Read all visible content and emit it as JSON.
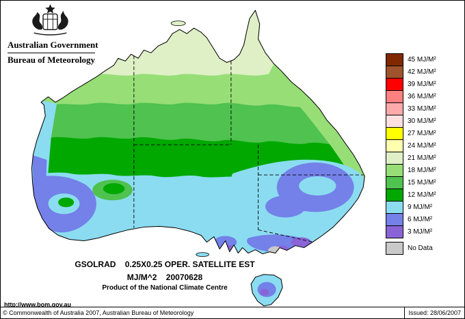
{
  "header": {
    "government": "Australian Government",
    "bureau": "Bureau of Meteorology"
  },
  "map": {
    "caption_line1": "GSOLRAD    0.25X0.25 OPER. SATELLITE EST",
    "caption_line2": "MJ/M^2    20070628",
    "caption_line3": "Product of the National Climate Centre",
    "url": "http://www.bom.gov.au"
  },
  "legend": {
    "items": [
      {
        "value": "45",
        "label": "45 MJ/M²",
        "color": "#802800"
      },
      {
        "value": "42",
        "label": "42 MJ/M²",
        "color": "#A0522D"
      },
      {
        "value": "39",
        "label": "39 MJ/M²",
        "color": "#FF0000"
      },
      {
        "value": "36",
        "label": "36 MJ/M²",
        "color": "#FF8080"
      },
      {
        "value": "33",
        "label": "33 MJ/M²",
        "color": "#FFAAAA"
      },
      {
        "value": "30",
        "label": "30 MJ/M²",
        "color": "#FFE0E0"
      },
      {
        "value": "27",
        "label": "27 MJ/M²",
        "color": "#FFFF00"
      },
      {
        "value": "24",
        "label": "24 MJ/M²",
        "color": "#FFFFB0"
      },
      {
        "value": "21",
        "label": "21 MJ/M²",
        "color": "#DFF0C6"
      },
      {
        "value": "18",
        "label": "18 MJ/M²",
        "color": "#97DE77"
      },
      {
        "value": "15",
        "label": "15 MJ/M²",
        "color": "#4FC24F"
      },
      {
        "value": "12",
        "label": "12 MJ/M²",
        "color": "#00A800"
      },
      {
        "value": "9",
        "label": "9 MJ/M²",
        "color": "#8BDCF0"
      },
      {
        "value": "6",
        "label": "6 MJ/M²",
        "color": "#7381E8"
      },
      {
        "value": "3",
        "label": "3 MJ/M²",
        "color": "#8A64D6"
      },
      {
        "value": "nodata",
        "label": "No Data",
        "color": "#C9C9C9"
      }
    ]
  },
  "footer": {
    "copyright": "© Commonwealth of Australia 2007, Australian Bureau of Meteorology",
    "issued": "Issued: 28/06/2007"
  }
}
